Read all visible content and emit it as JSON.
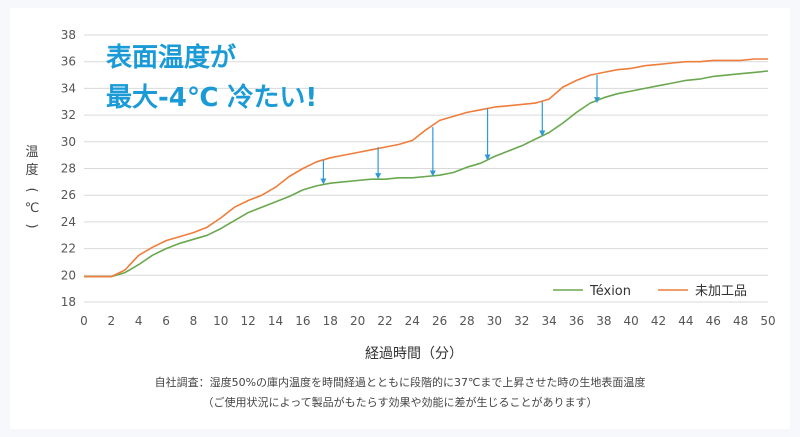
{
  "chart_data": {
    "type": "line",
    "headline_lines": [
      "表面温度が",
      "最大-4℃ 冷たい!"
    ],
    "ylabel_chars": [
      "温",
      "度",
      "(",
      "℃",
      ")"
    ],
    "xlabel": "経過時間（分）",
    "xlim": [
      0,
      50
    ],
    "ylim": [
      18,
      38
    ],
    "x_ticks": [
      0,
      2,
      4,
      6,
      8,
      10,
      12,
      14,
      16,
      18,
      20,
      22,
      24,
      26,
      28,
      30,
      32,
      34,
      36,
      38,
      40,
      42,
      44,
      46,
      48,
      50
    ],
    "y_ticks": [
      18,
      20,
      22,
      24,
      26,
      28,
      30,
      32,
      34,
      36,
      38
    ],
    "grid": true,
    "legend_position": "bottom-right",
    "series": [
      {
        "name": "Téxion",
        "color": "#6aa84f",
        "x": [
          0,
          1,
          2,
          3,
          4,
          5,
          6,
          7,
          8,
          9,
          10,
          11,
          12,
          13,
          14,
          15,
          16,
          17,
          18,
          19,
          20,
          21,
          22,
          23,
          24,
          25,
          26,
          27,
          28,
          29,
          30,
          31,
          32,
          33,
          34,
          35,
          36,
          37,
          38,
          39,
          40,
          41,
          42,
          43,
          44,
          45,
          46,
          47,
          48,
          49,
          50
        ],
        "values": [
          19.9,
          19.9,
          19.9,
          20.2,
          20.8,
          21.5,
          22.0,
          22.4,
          22.7,
          23.0,
          23.5,
          24.1,
          24.7,
          25.1,
          25.5,
          25.9,
          26.4,
          26.7,
          26.9,
          27.0,
          27.1,
          27.2,
          27.2,
          27.3,
          27.3,
          27.4,
          27.5,
          27.7,
          28.1,
          28.4,
          28.9,
          29.3,
          29.7,
          30.2,
          30.7,
          31.4,
          32.2,
          32.9,
          33.3,
          33.6,
          33.8,
          34.0,
          34.2,
          34.4,
          34.6,
          34.7,
          34.9,
          35.0,
          35.1,
          35.2,
          35.3
        ]
      },
      {
        "name": "未加工品",
        "color": "#ef7d3c",
        "x": [
          0,
          1,
          2,
          3,
          4,
          5,
          6,
          7,
          8,
          9,
          10,
          11,
          12,
          13,
          14,
          15,
          16,
          17,
          18,
          19,
          20,
          21,
          22,
          23,
          24,
          25,
          26,
          27,
          28,
          29,
          30,
          31,
          32,
          33,
          34,
          35,
          36,
          37,
          38,
          39,
          40,
          41,
          42,
          43,
          44,
          45,
          46,
          47,
          48,
          49,
          50
        ],
        "values": [
          19.9,
          19.9,
          19.9,
          20.4,
          21.5,
          22.1,
          22.6,
          22.9,
          23.2,
          23.6,
          24.3,
          25.1,
          25.6,
          26.0,
          26.6,
          27.4,
          28.0,
          28.5,
          28.8,
          29.0,
          29.2,
          29.4,
          29.6,
          29.8,
          30.1,
          30.9,
          31.6,
          31.9,
          32.2,
          32.4,
          32.6,
          32.7,
          32.8,
          32.9,
          33.2,
          34.1,
          34.6,
          35.0,
          35.2,
          35.4,
          35.5,
          35.7,
          35.8,
          35.9,
          36.0,
          36.0,
          36.1,
          36.1,
          36.1,
          36.2,
          36.2
        ]
      }
    ],
    "difference_arrows": [
      {
        "x": 17.5,
        "from": 28.6,
        "to": 26.8
      },
      {
        "x": 21.5,
        "from": 29.6,
        "to": 27.2
      },
      {
        "x": 25.5,
        "from": 31.1,
        "to": 27.4
      },
      {
        "x": 29.5,
        "from": 32.5,
        "to": 28.6
      },
      {
        "x": 33.5,
        "from": 33.0,
        "to": 30.4
      },
      {
        "x": 37.5,
        "from": 35.0,
        "to": 32.9
      }
    ],
    "arrow_color": "#2e9bd6",
    "footnote_lines": [
      "自社調査：湿度50%の庫内温度を時間経過とともに段階的に37℃まで上昇させた時の生地表面温度",
      "（ご使用状況によって製品がもたらす効果や効能に差が生じることがあります）"
    ]
  }
}
